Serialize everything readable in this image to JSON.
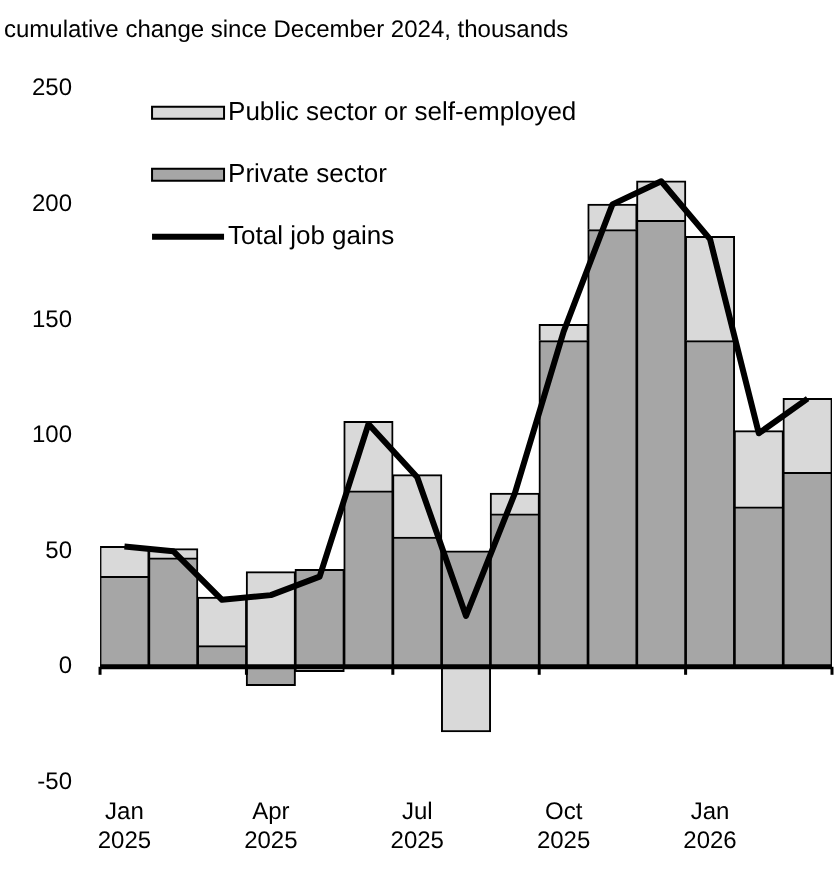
{
  "chart_data": {
    "type": "bar",
    "title": "cumulative change since December 2024, thousands",
    "categories": [
      "Jan 2025",
      null,
      null,
      "Apr 2025",
      null,
      null,
      "Jul 2025",
      null,
      null,
      "Oct 2025",
      null,
      null,
      "Jan 2026",
      null,
      null
    ],
    "stacked": true,
    "ref_lines": [
      {
        "axis": "y",
        "value": 0
      }
    ],
    "ylim": [
      -50,
      250
    ],
    "yticks": [
      -50,
      0,
      50,
      100,
      150,
      200,
      250
    ],
    "grid": false,
    "legend": "top left",
    "series": [
      {
        "name": "Private sector",
        "color": "#a6a6a6",
        "values": [
          39,
          47,
          9,
          -8,
          42,
          76,
          56,
          50,
          66,
          141,
          189,
          193,
          141,
          69,
          84
        ]
      },
      {
        "name": "Public sector or self-employed",
        "color": "#d9d9d9",
        "values": [
          13,
          4,
          21,
          41,
          -2,
          30,
          27,
          -28,
          9,
          7,
          11,
          17,
          45,
          33,
          32
        ]
      },
      {
        "name": "Total job gains",
        "type": "line",
        "color": "#000000",
        "values": [
          52,
          50,
          29,
          31,
          39,
          105,
          82,
          22,
          75,
          145,
          200,
          210,
          185,
          101,
          116
        ]
      }
    ]
  }
}
